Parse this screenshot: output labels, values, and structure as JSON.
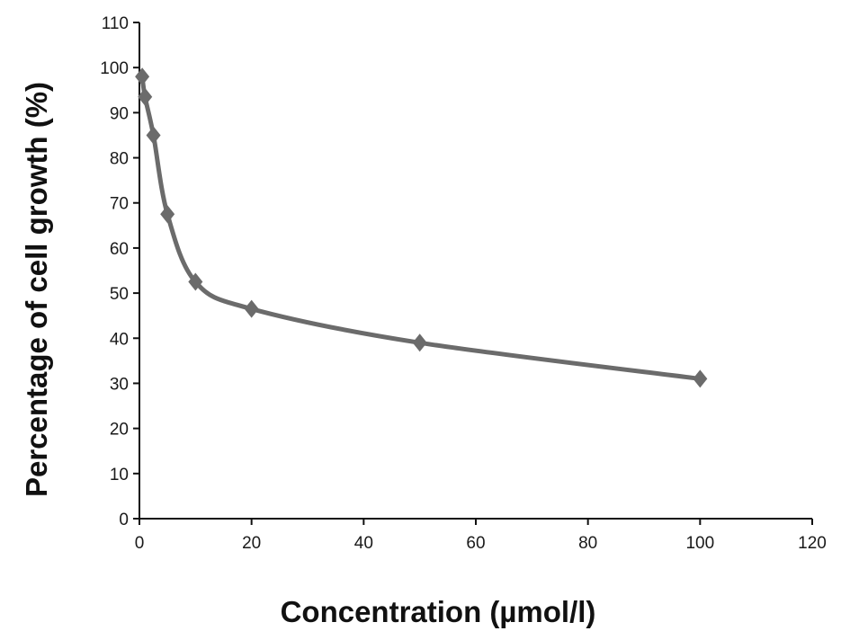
{
  "chart_data": {
    "type": "line",
    "title": "",
    "xlabel": "Concentration (µmol/l)",
    "ylabel": "Percentage of cell growth (%)",
    "xlim": [
      0,
      120
    ],
    "ylim": [
      0,
      110
    ],
    "xticks": [
      0,
      20,
      40,
      60,
      80,
      100,
      120
    ],
    "yticks": [
      0,
      10,
      20,
      30,
      40,
      50,
      60,
      70,
      80,
      90,
      100,
      110
    ],
    "grid": false,
    "legend": "none",
    "marker": "diamond",
    "smooth": true,
    "color": "#6b6b6b",
    "series": [
      {
        "x": [
          0.5,
          1,
          2.5,
          5,
          10,
          20,
          50,
          100
        ],
        "y": [
          98,
          93.5,
          85,
          67.5,
          52.5,
          46.5,
          39,
          31
        ]
      }
    ]
  }
}
